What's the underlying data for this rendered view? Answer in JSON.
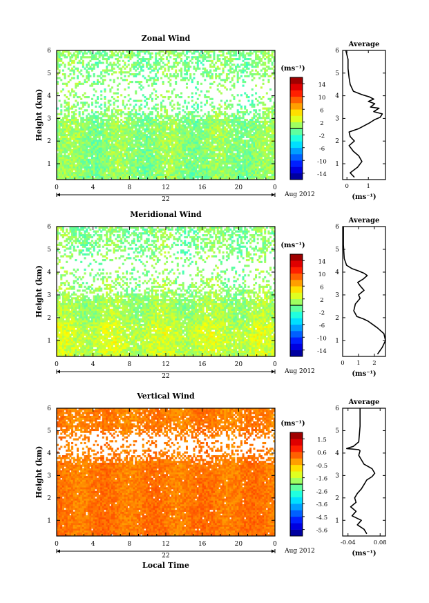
{
  "chart_data": [
    {
      "type": "heatmap",
      "title": "Zonal Wind",
      "xlabel": "",
      "ylabel": "Height (km)",
      "xlim": [
        0,
        24
      ],
      "ylim": [
        0.3,
        6
      ],
      "xticks": [
        "0",
        "4",
        "8",
        "12",
        "16",
        "20",
        "0"
      ],
      "yticks": [
        "1",
        "2",
        "3",
        "4",
        "5",
        "6"
      ],
      "date_label": "22",
      "month_label": "Aug 2012",
      "colorbar": {
        "unit": "(ms⁻¹)",
        "ticks": [
          "14",
          "10",
          "6",
          "2",
          "-2",
          "-6",
          "-10",
          "-14"
        ],
        "range": [
          -16,
          16
        ]
      },
      "field": {
        "mean_profile": [
          [
            0.3,
            0.3
          ],
          [
            1.5,
            0.5
          ],
          [
            2.2,
            0.7
          ],
          [
            3.0,
            0.3
          ],
          [
            3.8,
            0.0
          ],
          [
            4.3,
            0.2
          ],
          [
            6.0,
            0.0
          ]
        ],
        "noise": 1.8,
        "coverage": [
          [
            0.3,
            0.97
          ],
          [
            2.8,
            0.92
          ],
          [
            3.3,
            0.4
          ],
          [
            4.3,
            0.1
          ],
          [
            5.0,
            0.4
          ],
          [
            6.0,
            0.6
          ]
        ]
      }
    },
    {
      "type": "line",
      "title": "Average",
      "xlabel": "(ms⁻¹)",
      "ylabel": "",
      "xlim": [
        -0.2,
        1.8
      ],
      "ylim": [
        0.3,
        6
      ],
      "xticks": [
        "0",
        "1"
      ],
      "yticks": [
        "1",
        "2",
        "3",
        "4",
        "5",
        "6"
      ],
      "x": [
        0.35,
        0.15,
        0.5,
        0.7,
        0.55,
        0.3,
        0.1,
        0.35,
        0.15,
        0.1,
        0.55,
        0.85,
        1.05,
        1.3,
        1.55,
        1.65,
        1.25,
        1.5,
        1.1,
        1.3,
        1.0,
        1.25,
        1.05,
        0.7,
        0.3,
        0.15,
        0.1,
        0.05,
        0.05,
        -0.05
      ],
      "y": [
        0.4,
        0.6,
        0.85,
        1.1,
        1.35,
        1.55,
        1.8,
        2.0,
        2.2,
        2.4,
        2.55,
        2.7,
        2.8,
        2.95,
        3.05,
        3.2,
        3.3,
        3.45,
        3.5,
        3.65,
        3.75,
        3.85,
        3.95,
        4.05,
        4.2,
        4.5,
        4.8,
        5.2,
        5.6,
        6.0
      ]
    },
    {
      "type": "heatmap",
      "title": "Meridional Wind",
      "xlabel": "",
      "ylabel": "Height (km)",
      "xlim": [
        0,
        24
      ],
      "ylim": [
        0.3,
        6
      ],
      "xticks": [
        "0",
        "4",
        "8",
        "12",
        "16",
        "20",
        "0"
      ],
      "yticks": [
        "1",
        "2",
        "3",
        "4",
        "5",
        "6"
      ],
      "date_label": "22",
      "month_label": "Aug 2012",
      "colorbar": {
        "unit": "(ms⁻¹)",
        "ticks": [
          "14",
          "10",
          "6",
          "2",
          "-2",
          "-6",
          "-10",
          "-14"
        ],
        "range": [
          -16,
          16
        ]
      },
      "field": {
        "mean_profile": [
          [
            0.3,
            2.0
          ],
          [
            1.0,
            2.4
          ],
          [
            1.6,
            2.2
          ],
          [
            2.0,
            1.2
          ],
          [
            3.0,
            0.8
          ],
          [
            4.0,
            0.3
          ],
          [
            6.0,
            0.0
          ]
        ],
        "noise": 1.8,
        "coverage": [
          [
            0.3,
            0.97
          ],
          [
            2.6,
            0.92
          ],
          [
            3.3,
            0.4
          ],
          [
            4.3,
            0.1
          ],
          [
            5.0,
            0.4
          ],
          [
            6.0,
            0.6
          ]
        ]
      }
    },
    {
      "type": "line",
      "title": "Average",
      "xlabel": "(ms⁻¹)",
      "ylabel": "",
      "xlim": [
        0,
        2.7
      ],
      "ylim": [
        0.3,
        6
      ],
      "xticks": [
        "0",
        "1",
        "2"
      ],
      "yticks": [
        "1",
        "2",
        "3",
        "4",
        "5",
        "6"
      ],
      "x": [
        2.2,
        2.5,
        2.7,
        2.6,
        2.2,
        1.9,
        1.6,
        1.3,
        0.9,
        0.7,
        0.8,
        1.1,
        1.0,
        1.35,
        1.1,
        0.95,
        1.3,
        1.55,
        1.35,
        1.0,
        0.6,
        0.25,
        0.1,
        0.05,
        0.05
      ],
      "y": [
        0.4,
        0.7,
        1.0,
        1.3,
        1.55,
        1.7,
        1.85,
        1.95,
        2.05,
        2.3,
        2.6,
        2.85,
        3.0,
        3.2,
        3.4,
        3.55,
        3.7,
        3.85,
        3.95,
        4.05,
        4.15,
        4.3,
        4.6,
        5.2,
        6.0
      ]
    },
    {
      "type": "heatmap",
      "title": "Vertical Wind",
      "xlabel": "Local Time",
      "ylabel": "Height (km)",
      "xlim": [
        0,
        24
      ],
      "ylim": [
        0.3,
        6
      ],
      "xticks": [
        "0",
        "4",
        "8",
        "12",
        "16",
        "20",
        "0"
      ],
      "yticks": [
        "1",
        "2",
        "3",
        "4",
        "5",
        "6"
      ],
      "date_label": "22",
      "month_label": "Aug 2012",
      "colorbar": {
        "unit": "(ms⁻¹)",
        "ticks": [
          "1.5",
          "0.6",
          "-0.5",
          "-1.6",
          "-2.6",
          "-3.6",
          "-4.5",
          "-5.6"
        ],
        "range": [
          -6,
          2
        ]
      },
      "field": {
        "mean_profile": [
          [
            0.3,
            0.1
          ],
          [
            3.0,
            0.05
          ],
          [
            6.0,
            0.0
          ]
        ],
        "noise": 0.25,
        "coverage": [
          [
            0.3,
            0.99
          ],
          [
            3.5,
            0.97
          ],
          [
            4.0,
            0.3
          ],
          [
            4.6,
            0.2
          ],
          [
            5.2,
            0.85
          ],
          [
            6.0,
            0.9
          ]
        ]
      }
    },
    {
      "type": "line",
      "title": "Average",
      "xlabel": "(ms⁻¹)",
      "ylabel": "",
      "xlim": [
        -0.06,
        0.1
      ],
      "ylim": [
        0.3,
        6
      ],
      "xticks": [
        "-0.04",
        "0.08"
      ],
      "yticks": [
        "1",
        "2",
        "3",
        "4",
        "5",
        "6"
      ],
      "x": [
        0.03,
        0.02,
        -0.005,
        0.01,
        -0.025,
        -0.01,
        -0.03,
        -0.01,
        -0.015,
        -0.005,
        0.01,
        0.02,
        0.03,
        0.05,
        0.06,
        0.05,
        0.02,
        0.01,
        0.0,
        0.005,
        0.0,
        -0.045,
        -0.02,
        0.0,
        0.005,
        0.005
      ],
      "y": [
        0.4,
        0.6,
        0.8,
        1.0,
        1.2,
        1.4,
        1.6,
        1.8,
        2.0,
        2.2,
        2.4,
        2.6,
        2.8,
        2.95,
        3.1,
        3.3,
        3.5,
        3.7,
        3.9,
        4.1,
        4.15,
        4.2,
        4.3,
        4.5,
        5.2,
        6.0
      ]
    }
  ]
}
